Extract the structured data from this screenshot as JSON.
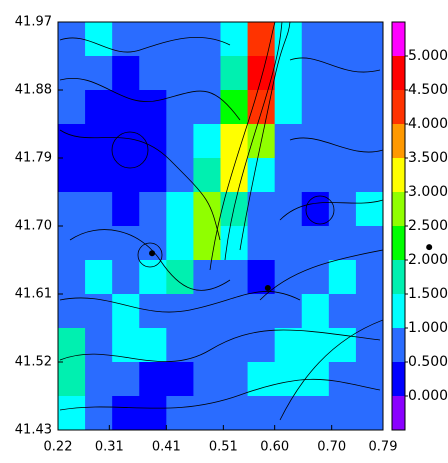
{
  "chart_data": {
    "type": "contour",
    "xlim": [
      0.22,
      0.79
    ],
    "ylim": [
      41.43,
      41.97
    ],
    "xticks": [
      0.22,
      0.31,
      0.41,
      0.51,
      {
        "value": 0.6,
        "label": "0.60"
      },
      {
        "value": 0.7,
        "label": "0.70"
      },
      0.79
    ],
    "yticks": [
      41.43,
      41.52,
      41.61,
      {
        "value": 41.7,
        "label": "41.70"
      },
      41.79,
      41.88,
      41.97
    ],
    "clim": [
      -0.5,
      5.5
    ],
    "colors": [
      "#8a00ff",
      "#0000ff",
      "#2a6cff",
      "#00ffff",
      "#00f0b0",
      "#00ff00",
      "#90ff00",
      "#ffff00",
      "#ff9900",
      "#ff3300",
      "#ff0000",
      "#ff00ff"
    ],
    "colorbar_ticks": [
      {
        "value": 0,
        "label": "0.000"
      },
      {
        "value": 0.5,
        "label": "0.500"
      },
      {
        "value": 1,
        "label": "1.000"
      },
      {
        "value": 1.5,
        "label": "1.500"
      },
      {
        "value": 2,
        "label": "2.000"
      },
      {
        "value": 2.5,
        "label": "2.500"
      },
      {
        "value": 3,
        "label": "3.000"
      },
      {
        "value": 3.5,
        "label": "3.500"
      },
      {
        "value": 4,
        "label": "4.000"
      },
      {
        "value": 4.5,
        "label": "4.500"
      },
      {
        "value": 5,
        "label": "5.000"
      }
    ],
    "z": [
      [
        0.7,
        1.2,
        0.7,
        0.7,
        0.7,
        0.7,
        1.2,
        4.2,
        1.2,
        0.7,
        0.7,
        0.7
      ],
      [
        0.7,
        0.7,
        0.3,
        0.7,
        0.7,
        0.7,
        1.7,
        4.7,
        1.2,
        0.7,
        0.7,
        0.7
      ],
      [
        0.7,
        0.3,
        0.3,
        0.3,
        0.7,
        0.7,
        2.2,
        4.4,
        1.2,
        0.7,
        0.7,
        0.7
      ],
      [
        0.3,
        0.3,
        0.3,
        0.3,
        0.7,
        1.2,
        3.2,
        2.7,
        0.7,
        0.7,
        0.7,
        0.7
      ],
      [
        0.3,
        0.3,
        0.3,
        0.3,
        0.7,
        1.7,
        3.2,
        1.2,
        0.7,
        0.7,
        0.7,
        0.7
      ],
      [
        0.7,
        0.7,
        0.3,
        0.7,
        1.2,
        2.7,
        1.7,
        0.7,
        0.7,
        0.3,
        0.7,
        1.2
      ],
      [
        0.7,
        0.7,
        0.7,
        0.7,
        1.2,
        2.7,
        1.2,
        0.7,
        0.7,
        0.7,
        0.7,
        0.7
      ],
      [
        0.7,
        1.2,
        0.7,
        1.2,
        1.7,
        0.7,
        0.7,
        0.3,
        0.7,
        0.7,
        1.2,
        0.7
      ],
      [
        0.7,
        0.7,
        1.2,
        0.7,
        0.7,
        0.7,
        0.7,
        0.7,
        0.7,
        1.2,
        0.7,
        0.7
      ],
      [
        1.7,
        0.7,
        1.2,
        1.2,
        0.7,
        0.7,
        0.7,
        0.7,
        1.2,
        1.2,
        1.2,
        0.7
      ],
      [
        1.7,
        0.7,
        0.7,
        0.3,
        0.3,
        0.7,
        0.7,
        1.2,
        1.2,
        1.2,
        0.7,
        0.7
      ],
      [
        1.2,
        0.7,
        0.3,
        0.3,
        0.7,
        0.7,
        0.7,
        0.7,
        0.7,
        0.7,
        0.7,
        0.7
      ]
    ],
    "points": {
      "x": [
        0.385,
        0.588,
        0.871
      ],
      "y": [
        41.664,
        41.618,
        41.672
      ]
    }
  }
}
